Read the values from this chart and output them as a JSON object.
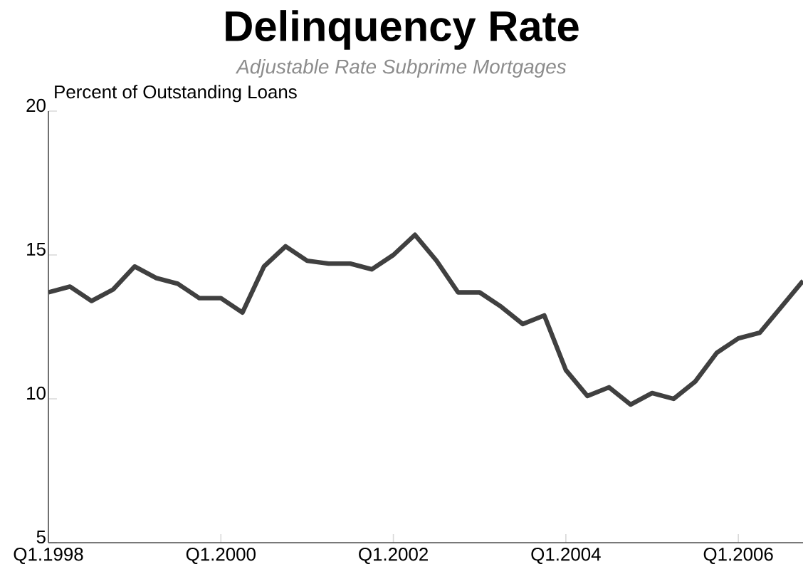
{
  "chart_data": {
    "type": "line",
    "title": "Delinquency Rate",
    "subtitle": "Adjustable Rate Subprime Mortgages",
    "ylabel": "Percent of Outstanding Loans",
    "categories": [
      "Q1.1998",
      null,
      null,
      null,
      null,
      null,
      null,
      null,
      "Q1.2000",
      null,
      null,
      null,
      null,
      null,
      null,
      null,
      "Q1.2002",
      null,
      null,
      null,
      null,
      null,
      null,
      null,
      "Q1.2004",
      null,
      null,
      null,
      null,
      null,
      null,
      null,
      "Q1.2006",
      null,
      null,
      null
    ],
    "series": [
      {
        "color": "#404040",
        "values": [
          13.7,
          13.9,
          13.4,
          13.8,
          14.6,
          14.2,
          14.0,
          13.5,
          13.5,
          13.0,
          14.6,
          15.3,
          14.8,
          14.7,
          14.7,
          14.5,
          15.0,
          15.7,
          14.8,
          13.7,
          13.7,
          13.2,
          12.6,
          12.9,
          11.0,
          10.1,
          10.4,
          9.8,
          10.2,
          10.0,
          10.6,
          11.6,
          12.1,
          12.3,
          13.2,
          14.1
        ]
      }
    ],
    "ylim": [
      5,
      20
    ],
    "yticks": [
      5,
      10,
      15,
      20
    ],
    "grid": false,
    "legend": false,
    "marker": "none",
    "line_style": "solid"
  }
}
